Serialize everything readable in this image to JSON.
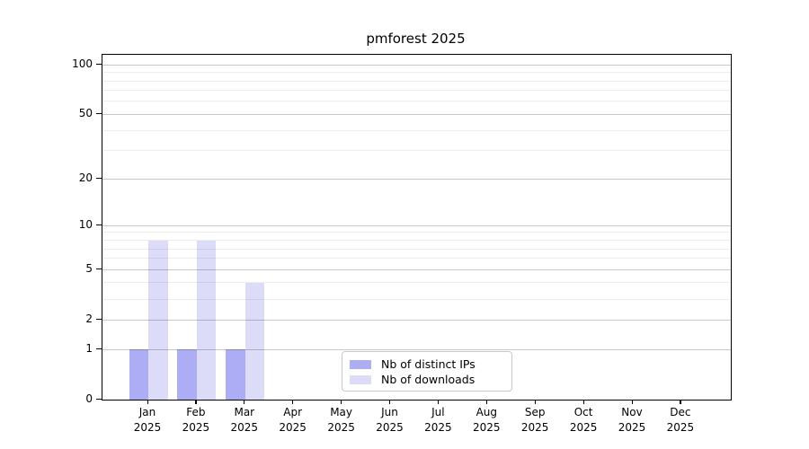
{
  "chart_data": {
    "type": "bar",
    "title": "pmforest 2025",
    "categories": [
      "Jan",
      "Feb",
      "Mar",
      "Apr",
      "May",
      "Jun",
      "Jul",
      "Aug",
      "Sep",
      "Oct",
      "Nov",
      "Dec"
    ],
    "category_year": "2025",
    "series": [
      {
        "name": "Nb of distinct IPs",
        "color": "#adadf5",
        "values": [
          1,
          1,
          1,
          0,
          0,
          0,
          0,
          0,
          0,
          0,
          0,
          0
        ]
      },
      {
        "name": "Nb of downloads",
        "color": "#dcdcf8",
        "values": [
          8,
          8,
          4,
          0,
          0,
          0,
          0,
          0,
          0,
          0,
          0,
          0
        ]
      }
    ],
    "y_axis": {
      "scale": "log1p",
      "ticks": [
        0,
        1,
        2,
        5,
        10,
        20,
        50,
        100
      ],
      "minor_gridlines": [
        3,
        4,
        6,
        7,
        8,
        9,
        30,
        40,
        60,
        70,
        80,
        90
      ],
      "max": 115
    },
    "xlabel": "",
    "ylabel": "",
    "grid": true,
    "legend_position": "lower center",
    "colors": {
      "background": "#ffffff",
      "spine": "#000000",
      "major_grid": "#c8c8c8",
      "minor_grid": "#ececec",
      "legend_border": "#c9c9c9"
    }
  }
}
